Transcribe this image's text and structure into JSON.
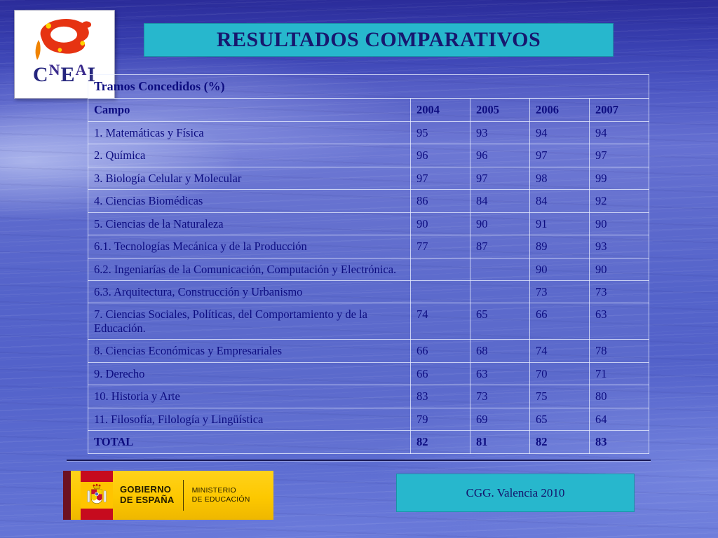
{
  "slide": {
    "title": "RESULTADOS COMPARATIVOS",
    "footer_badge": "CGG. Valencia 2010"
  },
  "cneai_logo": {
    "text": "CNEAI"
  },
  "gov_logo": {
    "gobierno_line1": "GOBIERNO",
    "gobierno_line2": "DE ESPAÑA",
    "ministerio_line1": "MINISTERIO",
    "ministerio_line2": "DE EDUCACIÓN"
  },
  "chart_data": {
    "type": "table",
    "title": "Tramos Concedidos  (%)",
    "columns": [
      "Campo",
      "2004",
      "2005",
      "2006",
      "2007"
    ],
    "rows": [
      {
        "campo": "1. Matemáticas y Física",
        "values": [
          "95",
          "93",
          "94",
          "94"
        ]
      },
      {
        "campo": "2. Química",
        "values": [
          "96",
          "96",
          "97",
          "97"
        ]
      },
      {
        "campo": "3. Biología Celular y Molecular",
        "values": [
          "97",
          "97",
          "98",
          "99"
        ]
      },
      {
        "campo": "4. Ciencias Biomédicas",
        "values": [
          "86",
          "84",
          "84",
          "92"
        ]
      },
      {
        "campo": "5. Ciencias de la Naturaleza",
        "values": [
          "90",
          "90",
          "91",
          "90"
        ]
      },
      {
        "campo": "6.1. Tecnologías Mecánica y de la Producción",
        "values": [
          "77",
          "87",
          "89",
          "93"
        ]
      },
      {
        "campo": "6.2. Ingeniarías de la Comunicación, Computación y Electrónica.",
        "values": [
          "",
          "",
          "90",
          "90"
        ]
      },
      {
        "campo": "6.3. Arquitectura, Construcción y Urbanismo",
        "values": [
          "",
          "",
          "73",
          "73"
        ]
      },
      {
        "campo": "7. Ciencias Sociales, Políticas, del Comportamiento y de la Educación.",
        "values": [
          "74",
          "65",
          "66",
          "63"
        ]
      },
      {
        "campo": "8. Ciencias Económicas y Empresariales",
        "values": [
          "66",
          "68",
          "74",
          "78"
        ]
      },
      {
        "campo": "9. Derecho",
        "values": [
          "66",
          "63",
          "70",
          "71"
        ]
      },
      {
        "campo": "10. Historia y Arte",
        "values": [
          "83",
          "73",
          "75",
          "80"
        ]
      },
      {
        "campo": "11. Filosofía, Filología y Lingüística",
        "values": [
          "79",
          "69",
          "65",
          "64"
        ]
      },
      {
        "campo": "TOTAL",
        "values": [
          "82",
          "81",
          "82",
          "83"
        ],
        "bold": true
      }
    ]
  },
  "colors": {
    "accent_teal": "#27b7cd",
    "text_navy": "#0d0d80",
    "gov_yellow": "#fdc800",
    "background_blue": "#5463ca"
  }
}
